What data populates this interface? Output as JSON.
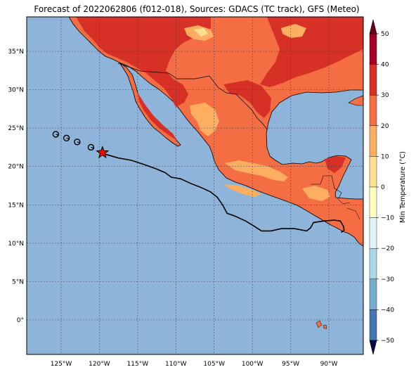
{
  "title": "Forecast of 2022062806 (f012-018), Sources: GDACS (TC track), GFS (Meteo)",
  "map": {
    "lon_range": [
      -129.5,
      -85.5
    ],
    "lat_range": [
      -4.5,
      39.5
    ],
    "ocean_color": "#8fb4d9",
    "x_ticks": [
      {
        "lon": -125,
        "label": "125°W"
      },
      {
        "lon": -120,
        "label": "120°W"
      },
      {
        "lon": -115,
        "label": "115°W"
      },
      {
        "lon": -110,
        "label": "110°W"
      },
      {
        "lon": -105,
        "label": "105°W"
      },
      {
        "lon": -100,
        "label": "100°W"
      },
      {
        "lon": -95,
        "label": "95°W"
      },
      {
        "lon": -90,
        "label": "90°W"
      }
    ],
    "y_ticks": [
      {
        "lat": 35,
        "label": "35°N"
      },
      {
        "lat": 30,
        "label": "30°N"
      },
      {
        "lat": 25,
        "label": "25°N"
      },
      {
        "lat": 20,
        "label": "20°N"
      },
      {
        "lat": 15,
        "label": "15°N"
      },
      {
        "lat": 10,
        "label": "10°N"
      },
      {
        "lat": 5,
        "label": "5°N"
      },
      {
        "lat": 0,
        "label": "0°"
      }
    ],
    "track": [
      [
        -119.6,
        21.7
      ],
      [
        -117.5,
        21.1
      ],
      [
        -115.8,
        20.8
      ],
      [
        -114.0,
        20.2
      ],
      [
        -112.6,
        19.7
      ],
      [
        -111.4,
        19.2
      ],
      [
        -110.6,
        18.6
      ],
      [
        -109.4,
        18.4
      ],
      [
        -108.1,
        17.8
      ],
      [
        -106.8,
        17.3
      ],
      [
        -105.5,
        16.7
      ],
      [
        -104.6,
        16.0
      ],
      [
        -103.9,
        15.0
      ],
      [
        -103.3,
        13.9
      ],
      [
        -102.2,
        13.5
      ],
      [
        -100.9,
        12.9
      ],
      [
        -99.9,
        12.3
      ],
      [
        -98.8,
        11.6
      ],
      [
        -97.6,
        11.6
      ],
      [
        -96.2,
        11.9
      ],
      [
        -94.5,
        11.9
      ],
      [
        -92.9,
        11.6
      ],
      [
        -92.4,
        12.0
      ],
      [
        -92.0,
        12.7
      ],
      [
        -90.6,
        12.9
      ],
      [
        -89.3,
        13.0
      ],
      [
        -88.5,
        12.9
      ],
      [
        -88.1,
        12.2
      ],
      [
        -88.0,
        11.7
      ],
      [
        -88.4,
        11.4
      ]
    ],
    "past_positions": [
      [
        -125.7,
        24.2
      ],
      [
        -124.3,
        23.7
      ],
      [
        -122.9,
        23.2
      ],
      [
        -121.1,
        22.5
      ]
    ],
    "current_position": [
      -119.6,
      21.8
    ]
  },
  "colorbar": {
    "label": "Min Temperature (°C)",
    "ticks": [
      "50",
      "40",
      "30",
      "20",
      "10",
      "0",
      "−10",
      "−20",
      "−30",
      "−40",
      "−50"
    ],
    "colors": [
      "#a50026",
      "#d73027",
      "#f46d43",
      "#fdae61",
      "#fee090",
      "#ffffbf",
      "#e0f3f8",
      "#abd9e9",
      "#74add1",
      "#4575b4",
      "#313695"
    ]
  }
}
